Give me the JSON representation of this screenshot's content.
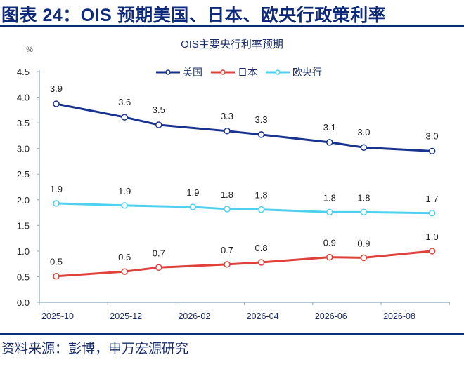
{
  "figure_title": "图表 24：OIS 预期美国、日本、欧央行政策利率",
  "source": "资料来源：彭博，申万宏源研究",
  "chart_data": {
    "type": "line",
    "title": "OIS主要央行利率预期",
    "ylabel": "%",
    "ylim": [
      0,
      4.5
    ],
    "yticks": [
      "0.0",
      "0.5",
      "1.0",
      "1.5",
      "2.0",
      "2.5",
      "3.0",
      "3.5",
      "4.0",
      "4.5"
    ],
    "xticks": [
      "2025-10",
      "2025-12",
      "2026-02",
      "2026-04",
      "2026-06",
      "2026-08"
    ],
    "grid": false,
    "legend": "top-center",
    "series": [
      {
        "name": "美国",
        "color": "#17328f",
        "x": [
          "2025-10",
          "2025-12",
          "2026-01",
          "2026-03",
          "2026-04",
          "2026-06",
          "2026-07",
          "2026-09"
        ],
        "values": [
          3.87,
          3.61,
          3.46,
          3.34,
          3.27,
          3.12,
          3.02,
          2.95
        ],
        "labels": [
          "3.9",
          "3.6",
          "3.5",
          "3.3",
          "3.3",
          "3.1",
          "3.0",
          "3.0"
        ]
      },
      {
        "name": "日本",
        "color": "#e0413a",
        "x": [
          "2025-10",
          "2025-12",
          "2026-01",
          "2026-03",
          "2026-04",
          "2026-06",
          "2026-07",
          "2026-09"
        ],
        "values": [
          0.51,
          0.6,
          0.68,
          0.74,
          0.78,
          0.88,
          0.87,
          1.0
        ],
        "labels": [
          "0.5",
          "0.6",
          "0.7",
          "0.7",
          "0.8",
          "0.9",
          "0.9",
          "1.0"
        ]
      },
      {
        "name": "欧央行",
        "color": "#4fd0f0",
        "x": [
          "2025-10",
          "2025-12",
          "2026-02",
          "2026-03",
          "2026-04",
          "2026-06",
          "2026-07",
          "2026-09"
        ],
        "values": [
          1.93,
          1.89,
          1.86,
          1.82,
          1.81,
          1.76,
          1.76,
          1.74
        ],
        "labels": [
          "1.9",
          "1.9",
          "1.9",
          "1.8",
          "1.8",
          "1.8",
          "1.8",
          "1.7"
        ]
      }
    ]
  }
}
